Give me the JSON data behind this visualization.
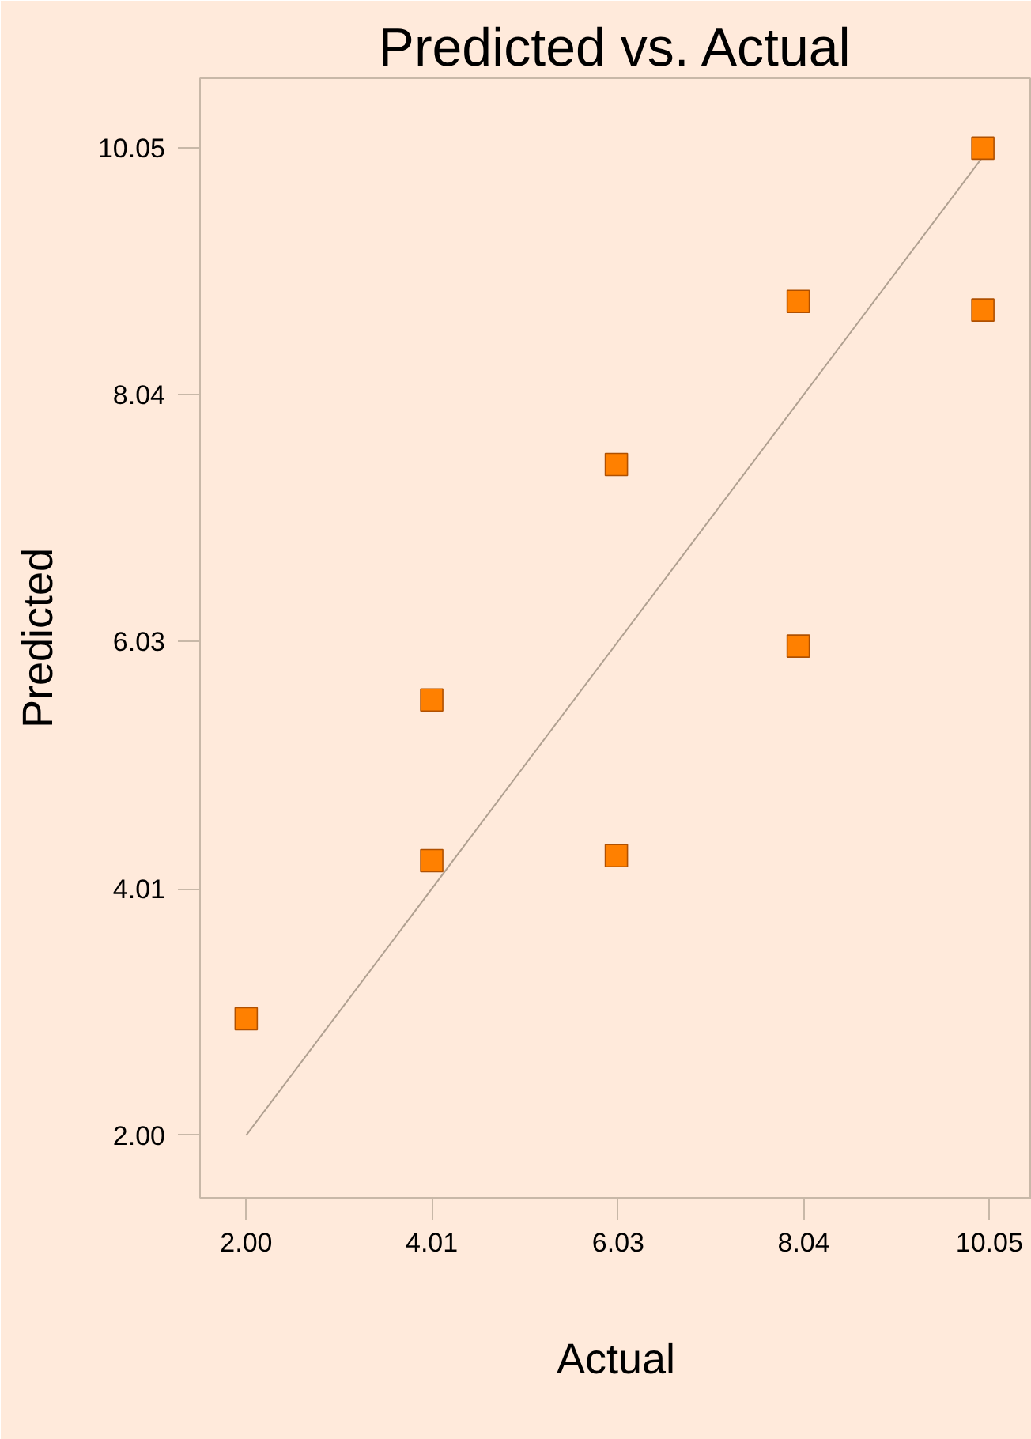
{
  "chart_data": {
    "type": "scatter",
    "title": "Predicted vs. Actual",
    "xlabel": "Actual",
    "ylabel": "Predicted",
    "xlim": [
      1.5,
      10.51
    ],
    "ylim": [
      1.49,
      10.62
    ],
    "xticks": [
      {
        "value": 2.0,
        "label": "2.00"
      },
      {
        "value": 4.01,
        "label": "4.01"
      },
      {
        "value": 6.03,
        "label": "6.03"
      },
      {
        "value": 8.04,
        "label": "8.04"
      },
      {
        "value": 10.05,
        "label": "10.05"
      }
    ],
    "yticks": [
      {
        "value": 2.0,
        "label": "2.00"
      },
      {
        "value": 4.01,
        "label": "4.01"
      },
      {
        "value": 6.03,
        "label": "6.03"
      },
      {
        "value": 8.04,
        "label": "8.04"
      },
      {
        "value": 10.05,
        "label": "10.05"
      }
    ],
    "grid": false,
    "series": [
      {
        "marker": "square",
        "color": "#ff8000",
        "x": [
          2.0,
          4.01,
          4.01,
          6.01,
          6.01,
          7.98,
          7.98,
          9.98,
          9.98
        ],
        "values": [
          2.95,
          5.55,
          4.24,
          7.47,
          4.28,
          8.8,
          5.99,
          10.05,
          8.73
        ]
      },
      {
        "type": "line",
        "marker": "none",
        "color": "#b0a090",
        "x": [
          2.0,
          10.05
        ],
        "values": [
          2.0,
          10.05
        ]
      }
    ]
  }
}
